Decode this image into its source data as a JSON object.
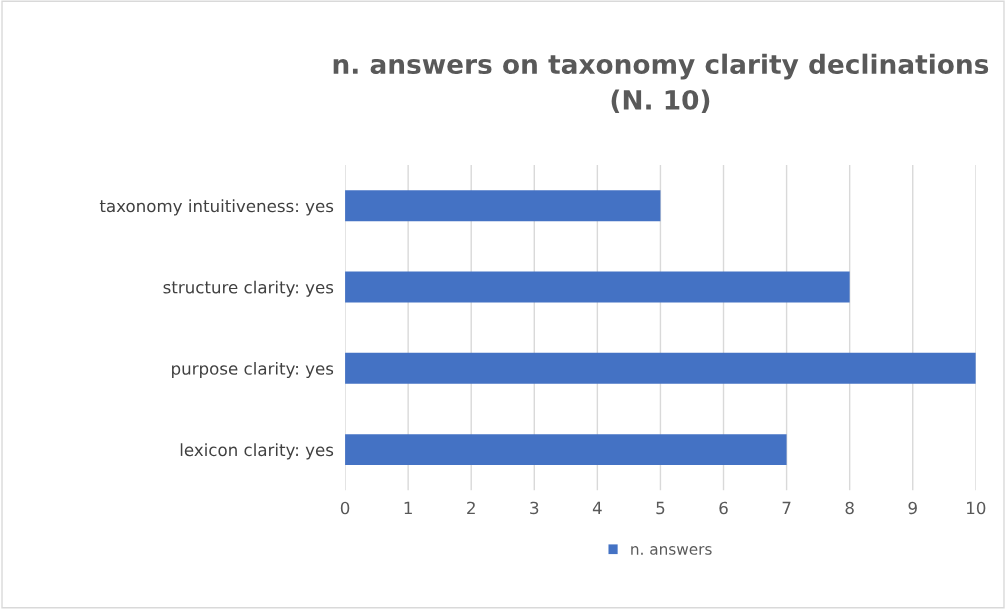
{
  "chart_data": {
    "type": "bar",
    "orientation": "horizontal",
    "title": "n. answers on taxonomy clarity declinations\n(N. 10)",
    "categories": [
      "taxonomy intuitiveness: yes",
      "structure clarity: yes",
      "purpose clarity: yes",
      "lexicon clarity: yes"
    ],
    "series": [
      {
        "name": "n. answers",
        "color": "#4472c4",
        "values": [
          5,
          8,
          10,
          7
        ]
      }
    ],
    "xlim": [
      0,
      10
    ],
    "xticks": [
      0,
      1,
      2,
      3,
      4,
      5,
      6,
      7,
      8,
      9,
      10
    ],
    "grid": "x",
    "legend": "bottom"
  }
}
